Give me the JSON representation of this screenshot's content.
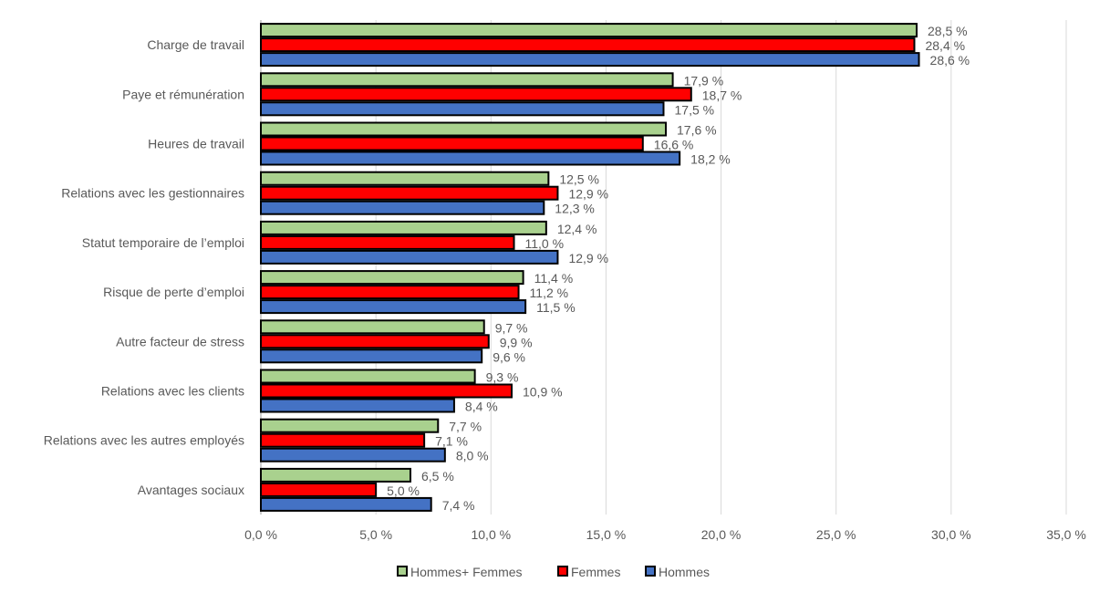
{
  "chart_data": {
    "type": "bar",
    "orientation": "horizontal",
    "categories": [
      "Charge de travail",
      "Paye et rémunération",
      "Heures de travail",
      "Relations avec les gestionnaires",
      "Statut temporaire de l’emploi",
      "Risque de perte d’emploi",
      "Autre facteur de stress",
      "Relations avec les clients",
      "Relations avec les autres employés",
      "Avantages sociaux"
    ],
    "series": [
      {
        "name": "Hommes+ Femmes",
        "color": "#A9D18E",
        "values": [
          28.5,
          17.9,
          17.6,
          12.5,
          12.4,
          11.4,
          9.7,
          9.3,
          7.7,
          6.5
        ]
      },
      {
        "name": "Femmes",
        "color": "#FF0000",
        "values": [
          28.4,
          18.7,
          16.6,
          12.9,
          11.0,
          11.2,
          9.9,
          10.9,
          7.1,
          5.0
        ]
      },
      {
        "name": "Hommes",
        "color": "#4472C4",
        "values": [
          28.6,
          17.5,
          18.2,
          12.3,
          12.9,
          11.5,
          9.6,
          8.4,
          8.0,
          7.4
        ]
      }
    ],
    "xlim": [
      0,
      35
    ],
    "xticks": [
      0,
      5,
      10,
      15,
      20,
      25,
      30,
      35
    ],
    "xtick_labels": [
      "0,0 %",
      "5,0 %",
      "10,0 %",
      "15,0 %",
      "20,0 %",
      "25,0 %",
      "30,0 %",
      "35,0 %"
    ],
    "value_unit": " %",
    "grid": true,
    "legend_position": "bottom",
    "bar_border_color": "#000000",
    "grid_color": "#D9D9D9"
  }
}
